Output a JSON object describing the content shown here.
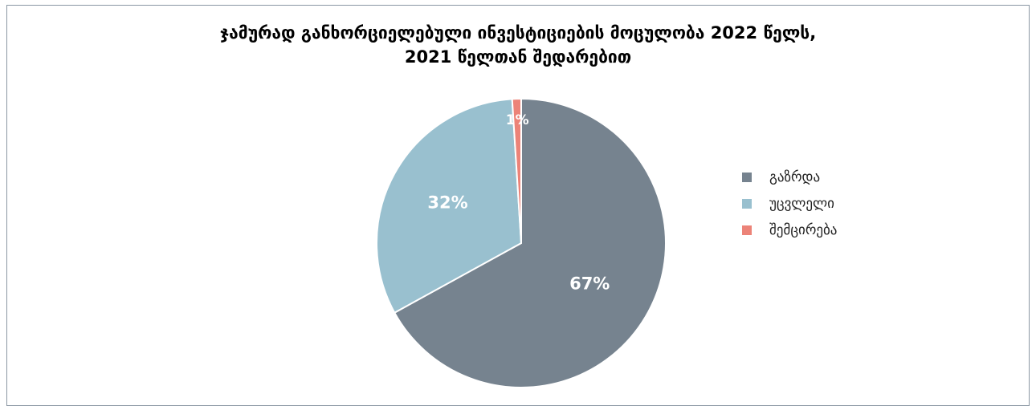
{
  "chart_data": {
    "type": "pie",
    "title_lines": [
      "ჯამურად განხორციელებული ინვესტიციების მოცულობა 2022 წელს,",
      "2021 წელთან შედარებით"
    ],
    "categories": [
      "გაზრდა",
      "უცვლელი",
      "შემცირება"
    ],
    "values": [
      67,
      32,
      1
    ],
    "value_labels": [
      "67%",
      "32%",
      "1%"
    ],
    "colors": [
      "#76838f",
      "#99c0cf",
      "#ec8378"
    ],
    "legend_position": "right"
  }
}
